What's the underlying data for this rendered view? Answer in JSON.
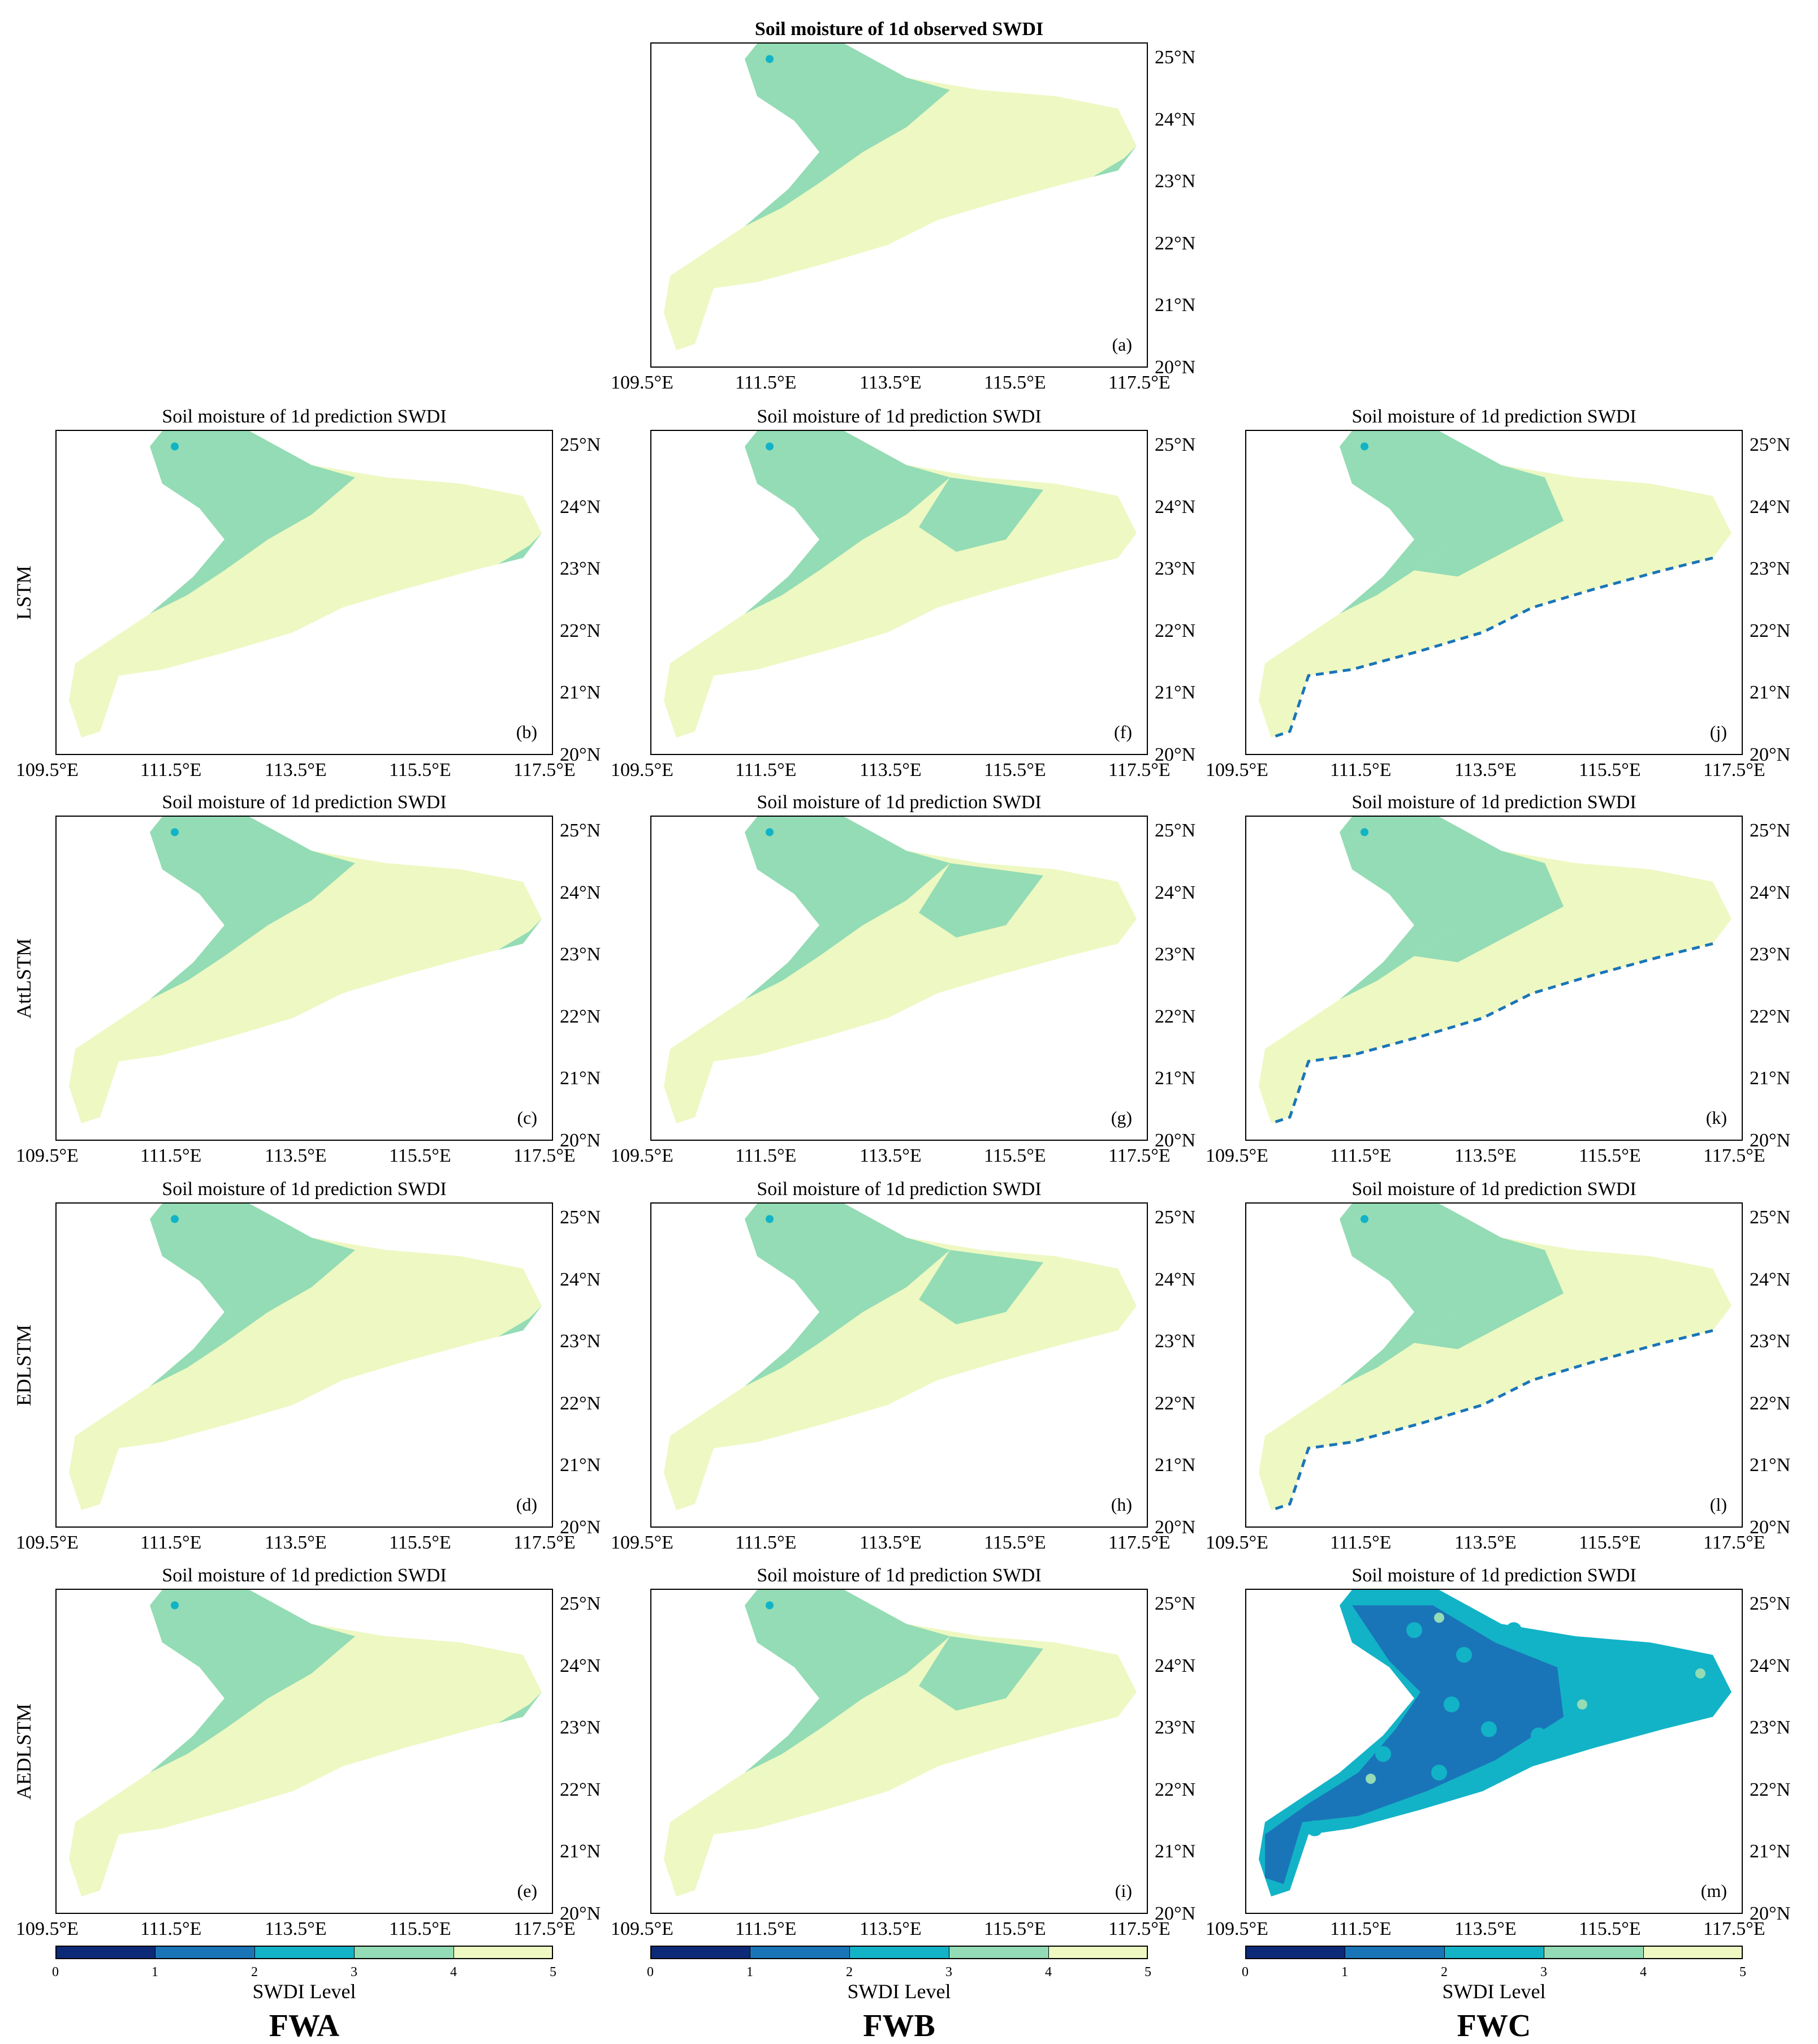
{
  "palette": [
    "#0c2a78",
    "#1a75b8",
    "#12b3c6",
    "#93dcb5",
    "#eef8c2"
  ],
  "panels": [
    {
      "id": "a",
      "title": "Soil moisture of 1d observed SWDI",
      "label": "(a)",
      "col": 1,
      "row": 0,
      "variant": "obs"
    },
    {
      "id": "b",
      "title": "Soil moisture of 1d prediction SWDI",
      "label": "(b)",
      "col": 0,
      "row": 1,
      "variant": "A1"
    },
    {
      "id": "c",
      "title": "Soil moisture of 1d prediction SWDI",
      "label": "(c)",
      "col": 0,
      "row": 2,
      "variant": "A2"
    },
    {
      "id": "d",
      "title": "Soil moisture of 1d prediction SWDI",
      "label": "(d)",
      "col": 0,
      "row": 3,
      "variant": "A3"
    },
    {
      "id": "e",
      "title": "Soil moisture of 1d prediction SWDI",
      "label": "(e)",
      "col": 0,
      "row": 4,
      "variant": "A4"
    },
    {
      "id": "f",
      "title": "Soil moisture of 1d prediction SWDI",
      "label": "(f)",
      "col": 1,
      "row": 1,
      "variant": "B1"
    },
    {
      "id": "g",
      "title": "Soil moisture of 1d prediction SWDI",
      "label": "(g)",
      "col": 1,
      "row": 2,
      "variant": "B2"
    },
    {
      "id": "h",
      "title": "Soil moisture of 1d prediction SWDI",
      "label": "(h)",
      "col": 1,
      "row": 3,
      "variant": "B3"
    },
    {
      "id": "i",
      "title": "Soil moisture of 1d prediction SWDI",
      "label": "(i)",
      "col": 1,
      "row": 4,
      "variant": "B4"
    },
    {
      "id": "j",
      "title": "Soil moisture of 1d prediction SWDI",
      "label": "(j)",
      "col": 2,
      "row": 1,
      "variant": "C1"
    },
    {
      "id": "k",
      "title": "Soil moisture of 1d prediction SWDI",
      "label": "(k)",
      "col": 2,
      "row": 2,
      "variant": "C2"
    },
    {
      "id": "l",
      "title": "Soil moisture of 1d prediction SWDI",
      "label": "(l)",
      "col": 2,
      "row": 3,
      "variant": "C3"
    },
    {
      "id": "m",
      "title": "Soil moisture of 1d prediction SWDI",
      "label": "(m)",
      "col": 2,
      "row": 4,
      "variant": "C4"
    }
  ],
  "row_labels": [
    "LSTM",
    "AttLSTM",
    "EDLSTM",
    "AEDLSTM"
  ],
  "lat_ticks": [
    "25°N",
    "24°N",
    "23°N",
    "22°N",
    "21°N",
    "20°N"
  ],
  "lon_ticks": [
    "109.5°E",
    "111.5°E",
    "113.5°E",
    "115.5°E",
    "117.5°E"
  ],
  "colorbars": [
    {
      "ticks": [
        "0",
        "1",
        "2",
        "3",
        "4",
        "5"
      ],
      "label": "SWDI Level",
      "method": "FWA"
    },
    {
      "ticks": [
        "0",
        "1",
        "2",
        "3",
        "4",
        "5"
      ],
      "label": "SWDI Level",
      "method": "FWB"
    },
    {
      "ticks": [
        "0",
        "1",
        "2",
        "3",
        "4",
        "5"
      ],
      "label": "SWDI Level",
      "method": "FWC"
    }
  ],
  "chart_data": {
    "type": "heatmap",
    "description_units": "SWDI level classes 0-5 mapped over longitude 109.5-117.5°E, latitude 20-25°N",
    "xlim": [
      109.5,
      117.5
    ],
    "ylim": [
      20,
      25
    ],
    "colorbar_range": [
      0,
      5
    ],
    "colorbar_levels": [
      0,
      1,
      2,
      3,
      4,
      5
    ]
  }
}
